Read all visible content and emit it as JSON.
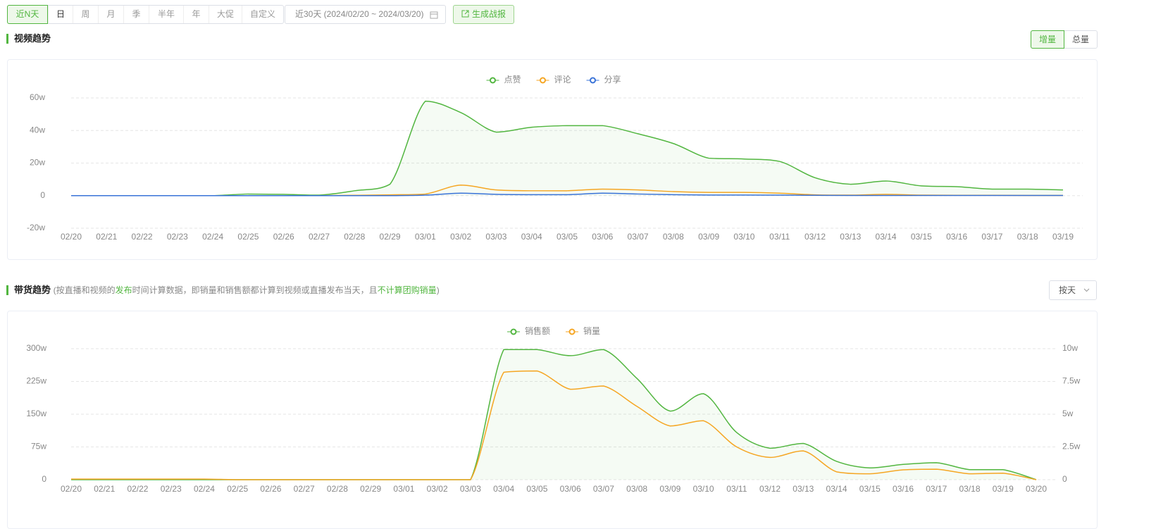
{
  "toolbar": {
    "tabs": [
      "近N天",
      "日",
      "周",
      "月",
      "季",
      "半年",
      "年",
      "大促",
      "自定义"
    ],
    "date_range": "近30天 (2024/02/20 ~ 2024/03/20)",
    "report_button": "生成战报"
  },
  "video_section": {
    "title": "视频趋势",
    "toggle": [
      "增量",
      "总量"
    ]
  },
  "sales_section": {
    "title": "带货趋势",
    "note": [
      "(按直播和视频的",
      "发布",
      "时间计算数据，即销量和销售额都计算到视频或直播发布当天，且",
      "不计算团购销量",
      ")"
    ],
    "dropdown": "按天"
  },
  "chart_data": [
    {
      "type": "line",
      "grid": true,
      "categories": [
        "02/20",
        "02/21",
        "02/22",
        "02/23",
        "02/24",
        "02/25",
        "02/26",
        "02/27",
        "02/28",
        "02/29",
        "03/01",
        "03/02",
        "03/03",
        "03/04",
        "03/05",
        "03/06",
        "03/07",
        "03/08",
        "03/09",
        "03/10",
        "03/11",
        "03/12",
        "03/13",
        "03/14",
        "03/15",
        "03/16",
        "03/17",
        "03/18",
        "03/19"
      ],
      "ylim": [
        -20,
        60
      ],
      "yticks": [
        {
          "value": -20,
          "label": "-20w"
        },
        0,
        {
          "value": 20,
          "label": "20w"
        },
        {
          "value": 40,
          "label": "40w"
        },
        {
          "value": 60,
          "label": "60w"
        }
      ],
      "series": [
        {
          "name": "点赞",
          "color": "#52b640",
          "area": true,
          "values": [
            0,
            0,
            0,
            0,
            0,
            1,
            0.8,
            0.3,
            3,
            7,
            58,
            51,
            39,
            42,
            43,
            43,
            38,
            32,
            23,
            22.5,
            21,
            11,
            7,
            9,
            6,
            5.5,
            4,
            4,
            3.5
          ]
        },
        {
          "name": "评论",
          "color": "#f5a623",
          "values": [
            0,
            0,
            0,
            0,
            0,
            0,
            0,
            0,
            0.2,
            0.5,
            1,
            6.5,
            3.5,
            3,
            3,
            4,
            3.5,
            2.5,
            2,
            2,
            1.5,
            0.5,
            0.3,
            0.8,
            0.3,
            0.2,
            0.2,
            0.1,
            0.1
          ]
        },
        {
          "name": "分享",
          "color": "#3a73d8",
          "values": [
            0,
            0,
            0,
            0,
            0,
            0,
            0,
            0,
            0,
            0,
            0.3,
            1.5,
            0.8,
            0.6,
            0.6,
            1.5,
            1,
            0.6,
            0.4,
            0.4,
            0.3,
            0.2,
            0.1,
            0.1,
            0.1,
            0.1,
            0.1,
            0.1,
            0.1
          ]
        }
      ]
    },
    {
      "type": "line",
      "grid": true,
      "categories": [
        "02/20",
        "02/21",
        "02/22",
        "02/23",
        "02/24",
        "02/25",
        "02/26",
        "02/27",
        "02/28",
        "02/29",
        "03/01",
        "03/02",
        "03/03",
        "03/04",
        "03/05",
        "03/06",
        "03/07",
        "03/08",
        "03/09",
        "03/10",
        "03/11",
        "03/12",
        "03/13",
        "03/14",
        "03/15",
        "03/16",
        "03/17",
        "03/18",
        "03/19",
        "03/20"
      ],
      "ylim": [
        0,
        300
      ],
      "yticks": [
        0,
        {
          "value": 75,
          "label": "75w"
        },
        {
          "value": 150,
          "label": "150w"
        },
        {
          "value": 225,
          "label": "225w"
        },
        {
          "value": 300,
          "label": "300w"
        }
      ],
      "y2lim": [
        0,
        10
      ],
      "y2ticks": [
        0,
        {
          "value": 2.5,
          "label": "2.5w"
        },
        {
          "value": 5,
          "label": "5w"
        },
        {
          "value": 7.5,
          "label": "7.5w"
        },
        {
          "value": 10,
          "label": "10w"
        }
      ],
      "series": [
        {
          "name": "销售额",
          "color": "#52b640",
          "area": true,
          "values": [
            0,
            0,
            0,
            0,
            0,
            0,
            0,
            0,
            0,
            0,
            0,
            0,
            0,
            298,
            298,
            284,
            298,
            232,
            157,
            197,
            108,
            72,
            83,
            42,
            27,
            35,
            39,
            23,
            23,
            0
          ]
        },
        {
          "name": "销量",
          "color": "#f5a623",
          "axis": "y2",
          "values": [
            0.05,
            0.05,
            0.05,
            0.05,
            0.05,
            0,
            0,
            0,
            0,
            0,
            0,
            0,
            0,
            8.2,
            8.3,
            6.9,
            7.15,
            5.6,
            4.1,
            4.5,
            2.5,
            1.7,
            2.2,
            0.6,
            0.45,
            0.75,
            0.8,
            0.45,
            0.5,
            0
          ]
        }
      ]
    }
  ]
}
